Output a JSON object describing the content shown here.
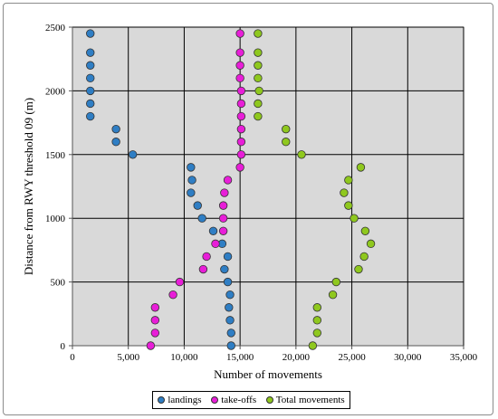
{
  "chart_data": {
    "type": "scatter",
    "xlabel": "Number of movements",
    "ylabel": "Distance from RWY threshold 09 (m)",
    "xlim": [
      0,
      35000
    ],
    "ylim": [
      0,
      2500
    ],
    "x_ticks": [
      "0",
      "5,000",
      "10,000",
      "15,000",
      "20,000",
      "25,000",
      "30,000",
      "35,000"
    ],
    "x_tick_values": [
      0,
      5000,
      10000,
      15000,
      20000,
      25000,
      30000,
      35000
    ],
    "y_ticks": [
      "0",
      "500",
      "1000",
      "1500",
      "2000",
      "2500"
    ],
    "y_tick_values": [
      0,
      500,
      1000,
      1500,
      2000,
      2500
    ],
    "grid": true,
    "plot_background": "#d9d9d9",
    "legend_position": "bottom",
    "series": [
      {
        "name": "landings",
        "color": "#2f7ec4",
        "points": [
          [
            1600,
            2450
          ],
          [
            1600,
            2300
          ],
          [
            1600,
            2200
          ],
          [
            1600,
            2100
          ],
          [
            1600,
            2000
          ],
          [
            1600,
            1900
          ],
          [
            1600,
            1800
          ],
          [
            3900,
            1700
          ],
          [
            3900,
            1600
          ],
          [
            5400,
            1500
          ],
          [
            10600,
            1400
          ],
          [
            10700,
            1300
          ],
          [
            10600,
            1200
          ],
          [
            11200,
            1100
          ],
          [
            11600,
            1000
          ],
          [
            12600,
            900
          ],
          [
            13400,
            800
          ],
          [
            13900,
            700
          ],
          [
            13600,
            600
          ],
          [
            13900,
            500
          ],
          [
            14100,
            400
          ],
          [
            14000,
            300
          ],
          [
            14100,
            200
          ],
          [
            14200,
            100
          ],
          [
            14200,
            0
          ]
        ]
      },
      {
        "name": "take-offs",
        "color": "#e81ed8",
        "points": [
          [
            15000,
            2450
          ],
          [
            15000,
            2300
          ],
          [
            15000,
            2200
          ],
          [
            15000,
            2100
          ],
          [
            15100,
            2000
          ],
          [
            15100,
            1900
          ],
          [
            15100,
            1800
          ],
          [
            15100,
            1700
          ],
          [
            15100,
            1600
          ],
          [
            15100,
            1500
          ],
          [
            15000,
            1400
          ],
          [
            13900,
            1300
          ],
          [
            13600,
            1200
          ],
          [
            13500,
            1100
          ],
          [
            13500,
            1000
          ],
          [
            13500,
            900
          ],
          [
            12800,
            800
          ],
          [
            12000,
            700
          ],
          [
            11700,
            600
          ],
          [
            9600,
            500
          ],
          [
            9000,
            400
          ],
          [
            7400,
            300
          ],
          [
            7400,
            200
          ],
          [
            7400,
            100
          ],
          [
            7000,
            0
          ]
        ]
      },
      {
        "name": "Total movements",
        "color": "#8fc81e",
        "points": [
          [
            16600,
            2450
          ],
          [
            16600,
            2300
          ],
          [
            16600,
            2200
          ],
          [
            16600,
            2100
          ],
          [
            16700,
            2000
          ],
          [
            16600,
            1900
          ],
          [
            16600,
            1800
          ],
          [
            19100,
            1700
          ],
          [
            19100,
            1600
          ],
          [
            20500,
            1500
          ],
          [
            25800,
            1400
          ],
          [
            24700,
            1300
          ],
          [
            24300,
            1200
          ],
          [
            24700,
            1100
          ],
          [
            25200,
            1000
          ],
          [
            26200,
            900
          ],
          [
            26700,
            800
          ],
          [
            26100,
            700
          ],
          [
            25600,
            600
          ],
          [
            23600,
            500
          ],
          [
            23300,
            400
          ],
          [
            21900,
            300
          ],
          [
            21900,
            200
          ],
          [
            21900,
            100
          ],
          [
            21500,
            0
          ]
        ]
      }
    ]
  }
}
